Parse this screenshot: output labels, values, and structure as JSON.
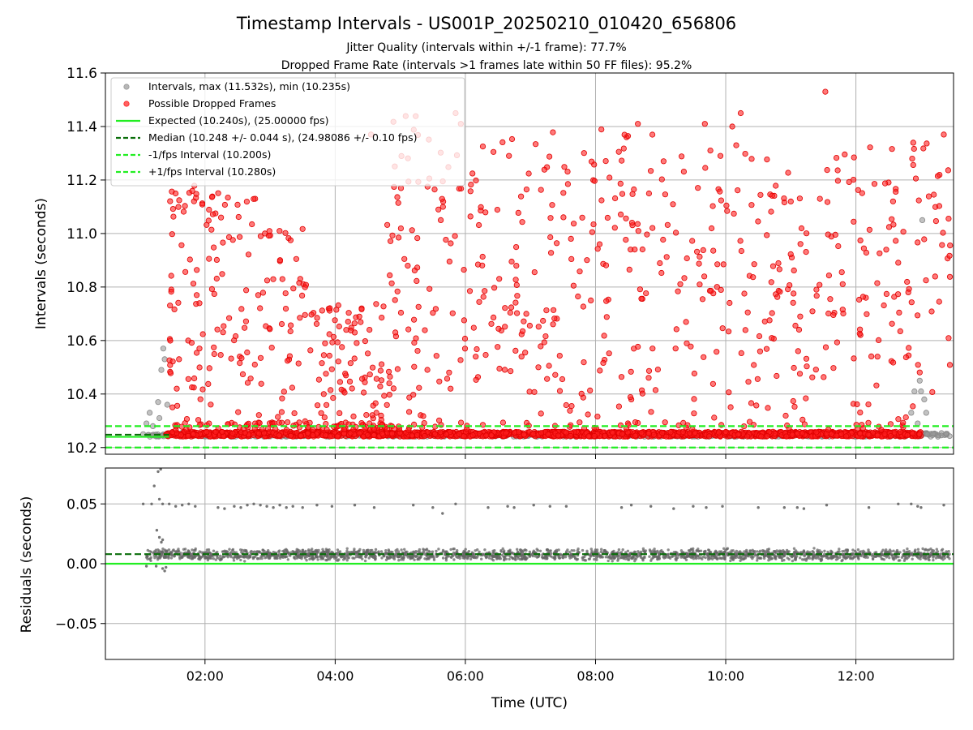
{
  "figure": {
    "title": "Timestamp Intervals - US001P_20250210_010420_656806",
    "subtitle_1": "Jitter Quality (intervals within +/-1 frame): 77.7%",
    "subtitle_2": "Dropped Frame Rate (intervals >1 frames late within 50 FF files): 95.2%"
  },
  "colors": {
    "interval": "#999999",
    "dropped": "#ff2020",
    "expected": "#22ee22",
    "median": "#0a6e0a",
    "residual": "#666666",
    "grid": "#b0b0b0"
  },
  "chart_data": [
    {
      "type": "scatter",
      "name": "intervals-panel",
      "xlabel": "",
      "ylabel": "Intervals (seconds)",
      "xlim_hours": [
        0.47,
        13.5
      ],
      "ylim": [
        10.175,
        11.6
      ],
      "yticks": [
        10.2,
        10.4,
        10.6,
        10.8,
        11.0,
        11.2,
        11.4,
        11.6
      ],
      "ytick_labels": [
        "10.2",
        "10.4",
        "10.6",
        "10.8",
        "11.0",
        "11.2",
        "11.4",
        "11.6"
      ],
      "xticks_hours": [
        2,
        4,
        6,
        8,
        10,
        12
      ],
      "grid": true,
      "legend_position": "upper-left",
      "legend": [
        {
          "label": "Intervals, max (11.532s), min (10.235s)",
          "kind": "point",
          "color": "#999999"
        },
        {
          "label": "Possible Dropped Frames",
          "kind": "point",
          "color": "#ff2020"
        },
        {
          "label": "Expected (10.240s), (25.00000 fps)",
          "kind": "line",
          "color": "#22ee22",
          "dash": false
        },
        {
          "label": "Median (10.248 +/- 0.044 s), (24.98086 +/- 0.10 fps)",
          "kind": "line",
          "color": "#0a6e0a",
          "dash": true
        },
        {
          "label": "-1/fps Interval (10.200s)",
          "kind": "line",
          "color": "#22ee22",
          "dash": true
        },
        {
          "label": "+1/fps Interval (10.280s)",
          "kind": "line",
          "color": "#22ee22",
          "dash": true
        }
      ],
      "reference_lines": {
        "expected": 10.24,
        "median": 10.248,
        "lower": 10.2,
        "upper": 10.28
      },
      "normal_band": {
        "x_range_hours": [
          1.1,
          13.45
        ],
        "y_range": [
          10.24,
          10.255
        ]
      },
      "dropped_band": {
        "x_range_hours": [
          1.4,
          13.0
        ],
        "y_range": [
          10.241,
          10.259
        ]
      },
      "outliers_grey": [
        [
          1.05,
          10.25
        ],
        [
          1.1,
          10.29
        ],
        [
          1.15,
          10.33
        ],
        [
          1.2,
          10.28
        ],
        [
          1.28,
          10.37
        ],
        [
          1.33,
          10.49
        ],
        [
          1.36,
          10.57
        ],
        [
          1.38,
          10.53
        ],
        [
          1.3,
          10.31
        ],
        [
          1.42,
          10.36
        ],
        [
          12.85,
          10.33
        ],
        [
          12.9,
          10.41
        ],
        [
          12.95,
          10.29
        ],
        [
          12.98,
          10.45
        ],
        [
          13.0,
          10.41
        ],
        [
          13.02,
          11.05
        ],
        [
          13.05,
          10.38
        ],
        [
          13.08,
          10.33
        ]
      ],
      "dropped_clusters": [
        {
          "x_range": [
            1.45,
            1.95
          ],
          "y_range": [
            10.26,
            11.2
          ],
          "count": 55
        },
        {
          "x_range": [
            1.95,
            2.9
          ],
          "y_range": [
            10.27,
            11.16
          ],
          "count": 70
        },
        {
          "x_range": [
            2.9,
            3.6
          ],
          "y_range": [
            10.26,
            11.02
          ],
          "count": 45
        },
        {
          "x_range": [
            3.6,
            4.85
          ],
          "y_range": [
            10.27,
            10.74
          ],
          "count": 90
        },
        {
          "x_range": [
            4.8,
            6.1
          ],
          "y_range": [
            10.26,
            11.45
          ],
          "count": 90
        },
        {
          "x_range": [
            6.1,
            9.0
          ],
          "y_range": [
            10.26,
            11.4
          ],
          "count": 190
        },
        {
          "x_range": [
            9.0,
            12.9
          ],
          "y_range": [
            10.26,
            11.33
          ],
          "count": 230
        },
        {
          "x_range": [
            12.85,
            13.45
          ],
          "y_range": [
            10.3,
            11.37
          ],
          "count": 35
        }
      ],
      "dropped_highlights": [
        [
          5.85,
          11.45
        ],
        [
          5.93,
          11.41
        ],
        [
          10.23,
          11.45
        ],
        [
          11.53,
          11.53
        ],
        [
          8.65,
          11.41
        ],
        [
          9.68,
          11.41
        ],
        [
          10.1,
          11.4
        ],
        [
          13.35,
          11.37
        ],
        [
          4.55,
          11.37
        ],
        [
          6.67,
          11.29
        ]
      ]
    },
    {
      "type": "scatter",
      "name": "residuals-panel",
      "xlabel": "Time (UTC)",
      "ylabel": "Residuals (seconds)",
      "xlim_hours": [
        0.47,
        13.5
      ],
      "ylim": [
        -0.08,
        0.08
      ],
      "yticks": [
        -0.05,
        0.0,
        0.05
      ],
      "ytick_labels": [
        "−0.05",
        "0.00",
        "0.05"
      ],
      "xticks_hours": [
        2,
        4,
        6,
        8,
        10,
        12
      ],
      "xtick_labels": [
        "02:00",
        "04:00",
        "06:00",
        "08:00",
        "10:00",
        "12:00"
      ],
      "grid": true,
      "reference_lines": {
        "expected": 0.0,
        "median": 0.008
      },
      "main_band": {
        "x_range_hours": [
          1.1,
          13.45
        ],
        "y_range": [
          0.002,
          0.013
        ]
      },
      "upper_sparse": [
        [
          1.05,
          0.05
        ],
        [
          1.18,
          0.05
        ],
        [
          1.3,
          0.054
        ],
        [
          1.35,
          0.05
        ],
        [
          1.45,
          0.05
        ],
        [
          1.55,
          0.048
        ],
        [
          1.65,
          0.049
        ],
        [
          1.75,
          0.05
        ],
        [
          1.85,
          0.048
        ],
        [
          2.2,
          0.047
        ],
        [
          2.3,
          0.046
        ],
        [
          2.45,
          0.048
        ],
        [
          2.55,
          0.047
        ],
        [
          2.65,
          0.049
        ],
        [
          2.75,
          0.05
        ],
        [
          2.85,
          0.049
        ],
        [
          2.95,
          0.048
        ],
        [
          3.05,
          0.047
        ],
        [
          3.15,
          0.049
        ],
        [
          3.25,
          0.047
        ],
        [
          3.35,
          0.048
        ],
        [
          3.5,
          0.047
        ],
        [
          3.72,
          0.049
        ],
        [
          3.95,
          0.048
        ],
        [
          4.3,
          0.049
        ],
        [
          4.6,
          0.047
        ],
        [
          5.2,
          0.049
        ],
        [
          5.5,
          0.047
        ],
        [
          5.65,
          0.042
        ],
        [
          5.85,
          0.05
        ],
        [
          6.35,
          0.047
        ],
        [
          6.65,
          0.048
        ],
        [
          6.75,
          0.047
        ],
        [
          7.05,
          0.049
        ],
        [
          7.3,
          0.048
        ],
        [
          7.55,
          0.048
        ],
        [
          8.4,
          0.047
        ],
        [
          8.55,
          0.049
        ],
        [
          8.85,
          0.048
        ],
        [
          9.2,
          0.046
        ],
        [
          9.5,
          0.048
        ],
        [
          9.7,
          0.047
        ],
        [
          9.95,
          0.048
        ],
        [
          10.5,
          0.047
        ],
        [
          10.9,
          0.047
        ],
        [
          11.1,
          0.047
        ],
        [
          11.2,
          0.046
        ],
        [
          11.55,
          0.049
        ],
        [
          12.2,
          0.047
        ],
        [
          12.65,
          0.05
        ],
        [
          12.85,
          0.05
        ],
        [
          12.95,
          0.048
        ],
        [
          13.0,
          0.047
        ],
        [
          13.35,
          0.049
        ]
      ],
      "upper_tail": [
        [
          1.28,
          0.077
        ],
        [
          1.32,
          0.079
        ],
        [
          1.22,
          0.065
        ],
        [
          1.26,
          0.028
        ],
        [
          1.3,
          0.022
        ],
        [
          1.33,
          0.018
        ],
        [
          1.35,
          0.02
        ]
      ],
      "lower_tail": [
        [
          1.1,
          -0.002
        ],
        [
          1.25,
          -0.002
        ],
        [
          1.35,
          -0.004
        ],
        [
          1.38,
          -0.006
        ],
        [
          1.4,
          -0.003
        ]
      ]
    }
  ]
}
